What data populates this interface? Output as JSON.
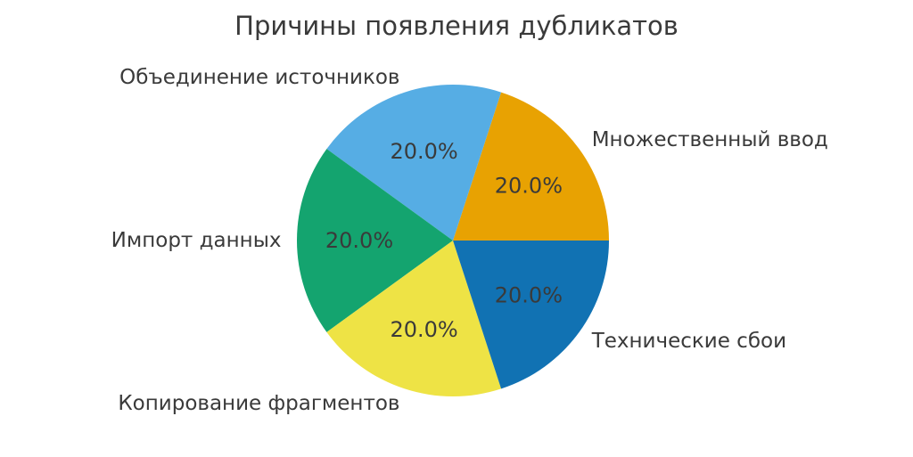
{
  "title": "Причины появления дубликатов",
  "colors": {
    "text": "#3a3a3a",
    "background": "#ffffff"
  },
  "chart_data": {
    "type": "pie",
    "title": "Причины появления дубликатов",
    "categories": [
      "Множественный ввод",
      "Объединение источников",
      "Импорт данных",
      "Копирование фрагментов",
      "Технические сбои"
    ],
    "values": [
      20.0,
      20.0,
      20.0,
      20.0,
      20.0
    ],
    "value_unit": "percent",
    "autopct_labels": [
      "20.0%",
      "20.0%",
      "20.0%",
      "20.0%",
      "20.0%"
    ],
    "slice_colors": [
      "#e8a202",
      "#56ade4",
      "#14a46f",
      "#eee345",
      "#1172b3"
    ],
    "start_angle": 0,
    "direction": "counterclockwise",
    "legend": "none",
    "labels_position": "outside",
    "grid": "off"
  }
}
